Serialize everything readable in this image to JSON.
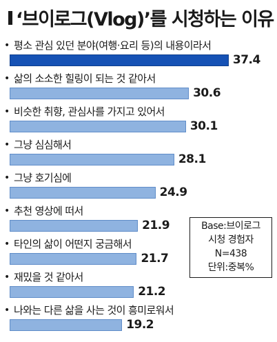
{
  "title": "‘브이로그(Vlog)’를 시청하는 이유",
  "info_box": [
    "Base:브이로그",
    "시청 경험자",
    "N=438",
    "단위:중복%"
  ],
  "chart_data": {
    "type": "bar",
    "orientation": "horizontal",
    "title": "‘브이로그(Vlog)’를 시청하는 이유",
    "categories": [
      "평소 관심 있던 분야(여행·요리 등)의 내용이라서",
      "삶의 소소한 힐링이 되는 것 같아서",
      "비슷한 취향, 관심사를 가지고 있어서",
      "그냥 심심해서",
      "그냥 호기심에",
      "추천 영상에 떠서",
      "타인의 삶이 어떤지 궁금해서",
      "재밌을 것 같아서",
      "나와는 다른 삶을 사는 것이 흥미로워서"
    ],
    "values": [
      37.4,
      30.6,
      30.1,
      28.1,
      24.9,
      21.9,
      21.7,
      21.2,
      19.2
    ],
    "value_labels": [
      "37.4",
      "30.6",
      "30.1",
      "28.1",
      "24.9",
      "21.9",
      "21.7",
      "21.2",
      "19.2"
    ],
    "highlight_color": "#1652b5",
    "bar_color": "#8fb3e0"
  }
}
